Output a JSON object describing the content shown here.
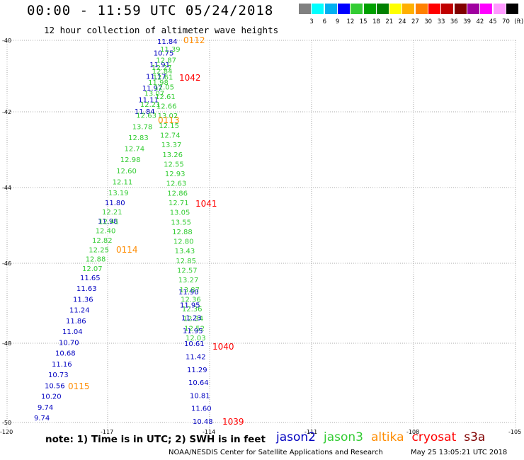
{
  "header": {
    "title": "00:00 - 11:59 UTC 05/24/2018",
    "subtitle": "12 hour collection of altimeter wave heights"
  },
  "colorbar": {
    "labels": [
      "3",
      "6",
      "9",
      "12",
      "15",
      "18",
      "21",
      "24",
      "27",
      "30",
      "33",
      "36",
      "39",
      "42",
      "45",
      "70",
      "(ft)"
    ],
    "colors": [
      "#808080",
      "#00ffff",
      "#00b0f0",
      "#0000ff",
      "#33cc33",
      "#00a000",
      "#008000",
      "#ffff00",
      "#ffb000",
      "#ff8000",
      "#ff0000",
      "#c00000",
      "#800000",
      "#a000a0",
      "#ff00ff",
      "#ff99ff",
      "#000000"
    ]
  },
  "axes": {
    "lat_labels": [
      "-40",
      "-42",
      "-44",
      "-46",
      "-48",
      "-50"
    ],
    "lon_labels": [
      "-120",
      "-117",
      "-114",
      "-111",
      "-108",
      "-105"
    ]
  },
  "colors": {
    "jason2": "#0000c0",
    "jason3": "#33cc33",
    "altika": "#ff8c00",
    "cryosat": "#ff0000",
    "s3a": "#800000",
    "grid": "#aaaaaa"
  },
  "tracks": {
    "jason2_left": [
      "11.84",
      "10.75",
      "11.91",
      "11.17",
      "11.97",
      "11.11",
      "11.84"
    ],
    "jason3_left": [
      "11.39",
      "12.87",
      "12.84",
      "11.98",
      "13.07",
      "12.21",
      "12.63",
      "13.78",
      "12.83",
      "12.74",
      "12.98",
      "12.60",
      "12.11",
      "13.19"
    ],
    "jason2_mid": [
      "11.80",
      "11.98"
    ],
    "jason3_mid": [
      "12.21",
      "12.41",
      "12.40",
      "12.82",
      "12.25",
      "12.88",
      "12.07"
    ],
    "jason2_bottom": [
      "11.65",
      "11.63",
      "11.36",
      "11.24",
      "11.86",
      "11.04",
      "10.70",
      "10.68",
      "11.16",
      "10.73",
      "10.56",
      "10.20",
      "9.74",
      "9.74"
    ],
    "jason3_right": [
      "12.27",
      "12.61",
      "12.05",
      "12.61",
      "12.66",
      "13.02",
      "12.15",
      "12.74",
      "13.37",
      "13.26",
      "12.55",
      "12.93",
      "12.63",
      "12.86",
      "12.71",
      "13.05",
      "13.55",
      "12.88",
      "12.80",
      "13.43",
      "12.85",
      "12.57",
      "13.27",
      "13.87",
      "12.36",
      "12.36",
      "12.34",
      "12.52",
      "12.03"
    ],
    "jason2_right": [
      "11.90",
      "11.95",
      "11.23",
      "11.95",
      "10.61",
      "11.42",
      "11.29",
      "10.64",
      "10.81",
      "11.60",
      "10.48"
    ]
  },
  "track_ids": {
    "orange": [
      "0112",
      "0113",
      "0114",
      "0115"
    ],
    "red": [
      "1042",
      "1041",
      "1040",
      "1039"
    ]
  },
  "footer": {
    "note": "note: 1) Time is in UTC; 2) SWH is in feet",
    "legend": [
      "jason2",
      "jason3",
      "altika",
      "cryosat",
      "s3a"
    ],
    "credit": "NOAA/NESDIS Center for Satellite Applications and Research",
    "timestamp": "May 25 13:05:21 UTC 2018"
  }
}
